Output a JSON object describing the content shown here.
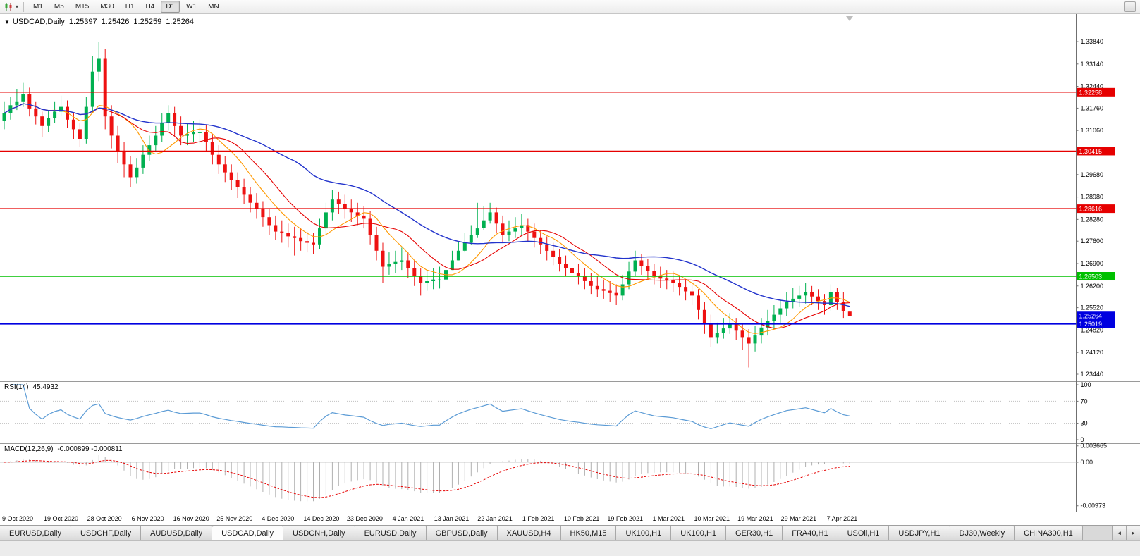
{
  "toolbar": {
    "dropdown_icon": "▾",
    "timeframes": [
      "M1",
      "M5",
      "M15",
      "M30",
      "H1",
      "H4",
      "D1",
      "W1",
      "MN"
    ],
    "active_timeframe": "D1"
  },
  "chart": {
    "window_marker": "▼",
    "symbol_period": "USDCAD,Daily",
    "ohlc": {
      "open": "1.25397",
      "high": "1.25426",
      "low": "1.25259",
      "close": "1.25264"
    },
    "price_axis_labels": [
      "1.33840",
      "1.33140",
      "1.32440",
      "1.31760",
      "1.31060",
      "1.30360",
      "1.29680",
      "1.28980",
      "1.28280",
      "1.27600",
      "1.26900",
      "1.26200",
      "1.25520",
      "1.24820",
      "1.24120",
      "1.23440"
    ],
    "hlines": [
      {
        "price": 1.32258,
        "label": "1.32258",
        "color": "#e60000",
        "width": 1.4
      },
      {
        "price": 1.30415,
        "label": "1.30415",
        "color": "#e60000",
        "width": 1.4
      },
      {
        "price": 1.28616,
        "label": "1.28616",
        "color": "#e60000",
        "width": 1.4
      },
      {
        "price": 1.26503,
        "label": "1.26503",
        "color": "#00c000",
        "width": 1.6
      },
      {
        "price": 1.25019,
        "label": "1.25019",
        "color": "#0000e0",
        "width": 2.6
      }
    ],
    "current_price": {
      "value": 1.25264,
      "label": "1.25264",
      "color": "#0000e0"
    },
    "date_labels": [
      "9 Oct 2020",
      "19 Oct 2020",
      "28 Oct 2020",
      "6 Nov 2020",
      "16 Nov 2020",
      "25 Nov 2020",
      "4 Dec 2020",
      "14 Dec 2020",
      "23 Dec 2020",
      "4 Jan 2021",
      "13 Jan 2021",
      "22 Jan 2021",
      "1 Feb 2021",
      "10 Feb 2021",
      "19 Feb 2021",
      "1 Mar 2021",
      "10 Mar 2021",
      "19 Mar 2021",
      "29 Mar 2021",
      "7 Apr 2021"
    ]
  },
  "rsi": {
    "name": "RSI(14)",
    "value": "45.4932",
    "axis_labels": [
      "100",
      "70",
      "30",
      "0"
    ],
    "levels": [
      70,
      30
    ],
    "color": "#5b9bd5"
  },
  "macd": {
    "name": "MACD(12,26,9)",
    "values": "-0.000899 -0.000811",
    "axis_labels": [
      "0.003665",
      "0.00",
      "-0.00973"
    ],
    "signal_color": "#e60000",
    "histogram_color": "#b0b0b0"
  },
  "tabs": {
    "items": [
      "EURUSD,Daily",
      "USDCHF,Daily",
      "AUDUSD,Daily",
      "USDCAD,Daily",
      "USDCNH,Daily",
      "EURUSD,Daily",
      "GBPUSD,Daily",
      "XAUUSD,H4",
      "HK50,M15",
      "UK100,H1",
      "UK100,H1",
      "GER30,H1",
      "FRA40,H1",
      "USOil,H1",
      "USDJPY,H1",
      "DJ30,Weekly",
      "CHINA300,H1"
    ],
    "active_index": 3,
    "scroll_left_icon": "◄",
    "scroll_right_icon": "►"
  },
  "chart_data": {
    "type": "candlestick",
    "symbol": "USDCAD",
    "timeframe": "Daily",
    "ylim": [
      1.2322,
      1.347
    ],
    "colors": {
      "up": "#00b050",
      "down": "#ee1111",
      "ma_fast": "#ff9900",
      "ma_mid": "#e60000",
      "ma_slow": "#2233cc"
    },
    "ma_periods": {
      "fast": 8,
      "mid": 13,
      "slow": 34
    },
    "rsi_period": 14,
    "macd_params": [
      12,
      26,
      9
    ],
    "candles": [
      [
        1.3135,
        1.3195,
        1.311,
        1.316
      ],
      [
        1.316,
        1.321,
        1.314,
        1.3185
      ],
      [
        1.3185,
        1.3235,
        1.317,
        1.3195
      ],
      [
        1.3195,
        1.3255,
        1.318,
        1.322
      ],
      [
        1.322,
        1.324,
        1.315,
        1.3175
      ],
      [
        1.3175,
        1.3195,
        1.3125,
        1.315
      ],
      [
        1.315,
        1.3165,
        1.3085,
        1.312
      ],
      [
        1.312,
        1.317,
        1.31,
        1.3145
      ],
      [
        1.3145,
        1.3195,
        1.313,
        1.3165
      ],
      [
        1.3165,
        1.3215,
        1.315,
        1.318
      ],
      [
        1.318,
        1.32,
        1.3115,
        1.314
      ],
      [
        1.314,
        1.316,
        1.308,
        1.311
      ],
      [
        1.311,
        1.313,
        1.3055,
        1.308
      ],
      [
        1.308,
        1.321,
        1.3065,
        1.318
      ],
      [
        1.318,
        1.334,
        1.316,
        1.329
      ],
      [
        1.329,
        1.3384,
        1.326,
        1.333
      ],
      [
        1.333,
        1.336,
        1.311,
        1.315
      ],
      [
        1.315,
        1.3185,
        1.305,
        1.309
      ],
      [
        1.309,
        1.312,
        1.3005,
        1.304
      ],
      [
        1.304,
        1.307,
        1.296,
        1.3
      ],
      [
        1.3,
        1.3025,
        1.293,
        1.296
      ],
      [
        1.296,
        1.302,
        1.294,
        1.299
      ],
      [
        1.299,
        1.306,
        1.297,
        1.303
      ],
      [
        1.303,
        1.309,
        1.301,
        1.306
      ],
      [
        1.306,
        1.312,
        1.304,
        1.309
      ],
      [
        1.309,
        1.316,
        1.307,
        1.313
      ],
      [
        1.313,
        1.3185,
        1.3105,
        1.316
      ],
      [
        1.316,
        1.318,
        1.309,
        1.312
      ],
      [
        1.312,
        1.315,
        1.306,
        1.309
      ],
      [
        1.309,
        1.313,
        1.306,
        1.3095
      ],
      [
        1.3095,
        1.3135,
        1.307,
        1.31
      ],
      [
        1.31,
        1.314,
        1.3065,
        1.31
      ],
      [
        1.31,
        1.3125,
        1.304,
        1.307
      ],
      [
        1.307,
        1.3095,
        1.3,
        1.303
      ],
      [
        1.303,
        1.306,
        1.297,
        1.3
      ],
      [
        1.3,
        1.3025,
        1.2945,
        1.2975
      ],
      [
        1.2975,
        1.3,
        1.292,
        1.295
      ],
      [
        1.295,
        1.2975,
        1.2895,
        1.293
      ],
      [
        1.293,
        1.2955,
        1.2875,
        1.2905
      ],
      [
        1.2905,
        1.293,
        1.285,
        1.288
      ],
      [
        1.288,
        1.291,
        1.283,
        1.286
      ],
      [
        1.286,
        1.2885,
        1.2805,
        1.2835
      ],
      [
        1.2835,
        1.286,
        1.278,
        1.281
      ],
      [
        1.281,
        1.284,
        1.2765,
        1.279
      ],
      [
        1.279,
        1.2825,
        1.2755,
        1.2785
      ],
      [
        1.2785,
        1.2815,
        1.274,
        1.2775
      ],
      [
        1.2775,
        1.2805,
        1.2715,
        1.277
      ],
      [
        1.277,
        1.28,
        1.273,
        1.276
      ],
      [
        1.276,
        1.279,
        1.2725,
        1.2755
      ],
      [
        1.2755,
        1.2785,
        1.272,
        1.275
      ],
      [
        1.275,
        1.283,
        1.2735,
        1.28
      ],
      [
        1.28,
        1.288,
        1.278,
        1.285
      ],
      [
        1.285,
        1.292,
        1.2825,
        1.289
      ],
      [
        1.289,
        1.2915,
        1.2845,
        1.2875
      ],
      [
        1.2875,
        1.2905,
        1.283,
        1.286
      ],
      [
        1.286,
        1.289,
        1.282,
        1.285
      ],
      [
        1.285,
        1.288,
        1.281,
        1.284
      ],
      [
        1.284,
        1.287,
        1.28,
        1.283
      ],
      [
        1.283,
        1.2855,
        1.275,
        1.278
      ],
      [
        1.278,
        1.2805,
        1.27,
        1.273
      ],
      [
        1.273,
        1.2755,
        1.263,
        1.268
      ],
      [
        1.268,
        1.2725,
        1.2655,
        1.269
      ],
      [
        1.269,
        1.273,
        1.266,
        1.2695
      ],
      [
        1.2695,
        1.274,
        1.267,
        1.27
      ],
      [
        1.27,
        1.2725,
        1.2645,
        1.2675
      ],
      [
        1.2675,
        1.27,
        1.262,
        1.265
      ],
      [
        1.265,
        1.2675,
        1.259,
        1.263
      ],
      [
        1.263,
        1.267,
        1.2605,
        1.2635
      ],
      [
        1.2635,
        1.2675,
        1.261,
        1.264
      ],
      [
        1.264,
        1.268,
        1.2612,
        1.264
      ],
      [
        1.264,
        1.27,
        1.264,
        1.267
      ],
      [
        1.267,
        1.273,
        1.267,
        1.27
      ],
      [
        1.27,
        1.276,
        1.27,
        1.273
      ],
      [
        1.273,
        1.2785,
        1.2725,
        1.2755
      ],
      [
        1.2755,
        1.281,
        1.275,
        1.278
      ],
      [
        1.278,
        1.288,
        1.277,
        1.28
      ],
      [
        1.28,
        1.287,
        1.2795,
        1.2825
      ],
      [
        1.2825,
        1.288,
        1.2815,
        1.285
      ],
      [
        1.285,
        1.2865,
        1.2785,
        1.2815
      ],
      [
        1.2815,
        1.284,
        1.2755,
        1.278
      ],
      [
        1.278,
        1.2825,
        1.276,
        1.279
      ],
      [
        1.279,
        1.2835,
        1.277,
        1.28
      ],
      [
        1.28,
        1.2845,
        1.278,
        1.281
      ],
      [
        1.281,
        1.283,
        1.276,
        1.279
      ],
      [
        1.279,
        1.2815,
        1.274,
        1.277
      ],
      [
        1.277,
        1.2795,
        1.272,
        1.275
      ],
      [
        1.275,
        1.2775,
        1.27,
        1.273
      ],
      [
        1.273,
        1.2755,
        1.2685,
        1.271
      ],
      [
        1.271,
        1.2735,
        1.2665,
        1.269
      ],
      [
        1.269,
        1.2715,
        1.265,
        1.2675
      ],
      [
        1.2675,
        1.27,
        1.2635,
        1.266
      ],
      [
        1.266,
        1.269,
        1.2625,
        1.265
      ],
      [
        1.265,
        1.2675,
        1.261,
        1.2635
      ],
      [
        1.2635,
        1.266,
        1.2595,
        1.262
      ],
      [
        1.262,
        1.265,
        1.2585,
        1.261
      ],
      [
        1.261,
        1.264,
        1.258,
        1.2605
      ],
      [
        1.2605,
        1.2635,
        1.257,
        1.2598
      ],
      [
        1.2598,
        1.2625,
        1.256,
        1.259
      ],
      [
        1.259,
        1.2655,
        1.2575,
        1.2625
      ],
      [
        1.2625,
        1.2695,
        1.261,
        1.2665
      ],
      [
        1.2665,
        1.273,
        1.265,
        1.27
      ],
      [
        1.27,
        1.272,
        1.2655,
        1.2683
      ],
      [
        1.2683,
        1.2705,
        1.264,
        1.2666
      ],
      [
        1.2666,
        1.269,
        1.2625,
        1.265
      ],
      [
        1.265,
        1.268,
        1.2615,
        1.2643
      ],
      [
        1.2643,
        1.267,
        1.261,
        1.2637
      ],
      [
        1.2637,
        1.2665,
        1.26,
        1.263
      ],
      [
        1.263,
        1.265,
        1.259,
        1.2617
      ],
      [
        1.2617,
        1.264,
        1.2575,
        1.2603
      ],
      [
        1.2603,
        1.263,
        1.256,
        1.259
      ],
      [
        1.259,
        1.261,
        1.2515,
        1.2545
      ],
      [
        1.2545,
        1.257,
        1.247,
        1.25
      ],
      [
        1.25,
        1.253,
        1.243,
        1.246
      ],
      [
        1.246,
        1.2505,
        1.244,
        1.2473
      ],
      [
        1.2473,
        1.252,
        1.2455,
        1.2487
      ],
      [
        1.2487,
        1.2535,
        1.247,
        1.25
      ],
      [
        1.25,
        1.252,
        1.245,
        1.248
      ],
      [
        1.248,
        1.25,
        1.242,
        1.246
      ],
      [
        1.246,
        1.2485,
        1.2365,
        1.244
      ],
      [
        1.244,
        1.2495,
        1.2415,
        1.2465
      ],
      [
        1.2465,
        1.252,
        1.244,
        1.249
      ],
      [
        1.249,
        1.2545,
        1.2465,
        1.251
      ],
      [
        1.251,
        1.256,
        1.2485,
        1.253
      ],
      [
        1.253,
        1.258,
        1.2505,
        1.255
      ],
      [
        1.255,
        1.26,
        1.2525,
        1.257
      ],
      [
        1.257,
        1.2615,
        1.255,
        1.258
      ],
      [
        1.258,
        1.262,
        1.2555,
        1.259
      ],
      [
        1.259,
        1.263,
        1.2565,
        1.26
      ],
      [
        1.26,
        1.262,
        1.256,
        1.2587
      ],
      [
        1.2587,
        1.261,
        1.2545,
        1.2573
      ],
      [
        1.2573,
        1.2595,
        1.253,
        1.256
      ],
      [
        1.256,
        1.2625,
        1.254,
        1.26
      ],
      [
        1.26,
        1.2615,
        1.2545,
        1.257
      ],
      [
        1.257,
        1.26,
        1.252,
        1.254
      ],
      [
        1.25397,
        1.25426,
        1.25259,
        1.25264
      ]
    ]
  }
}
